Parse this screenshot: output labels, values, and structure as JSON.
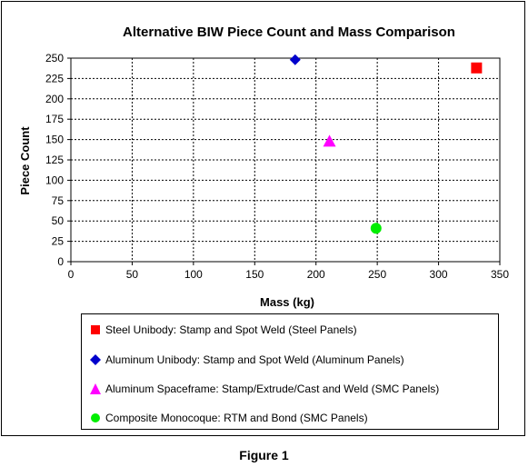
{
  "chart_data": {
    "type": "scatter",
    "title": "Alternative BIW Piece Count and Mass Comparison",
    "xlabel": "Mass (kg)",
    "ylabel": "Piece Count",
    "xlim": [
      0,
      350
    ],
    "ylim": [
      0,
      250
    ],
    "xticks": [
      "0",
      "50",
      "100",
      "150",
      "200",
      "250",
      "300",
      "350"
    ],
    "yticks": [
      "0",
      "25",
      "50",
      "75",
      "100",
      "125",
      "150",
      "175",
      "200",
      "225",
      "250"
    ],
    "grid": true,
    "legend_position": "bottom",
    "series": [
      {
        "name": "Steel Unibody: Stamp and Spot Weld (Steel Panels)",
        "marker": "square",
        "color": "#ff0000",
        "x": [
          331
        ],
        "y": [
          238
        ]
      },
      {
        "name": "Aluminum Unibody: Stamp and Spot Weld (Aluminum Panels)",
        "marker": "diamond",
        "color": "#0000cc",
        "x": [
          183
        ],
        "y": [
          248
        ]
      },
      {
        "name": "Aluminum Spaceframe: Stamp/Extrude/Cast and Weld (SMC Panels)",
        "marker": "triangle",
        "color": "#ff00ff",
        "x": [
          211
        ],
        "y": [
          148
        ]
      },
      {
        "name": "Composite Monocoque: RTM and Bond (SMC Panels)",
        "marker": "circle",
        "color": "#00ee00",
        "x": [
          249
        ],
        "y": [
          41
        ]
      }
    ]
  },
  "caption": "Figure 1"
}
